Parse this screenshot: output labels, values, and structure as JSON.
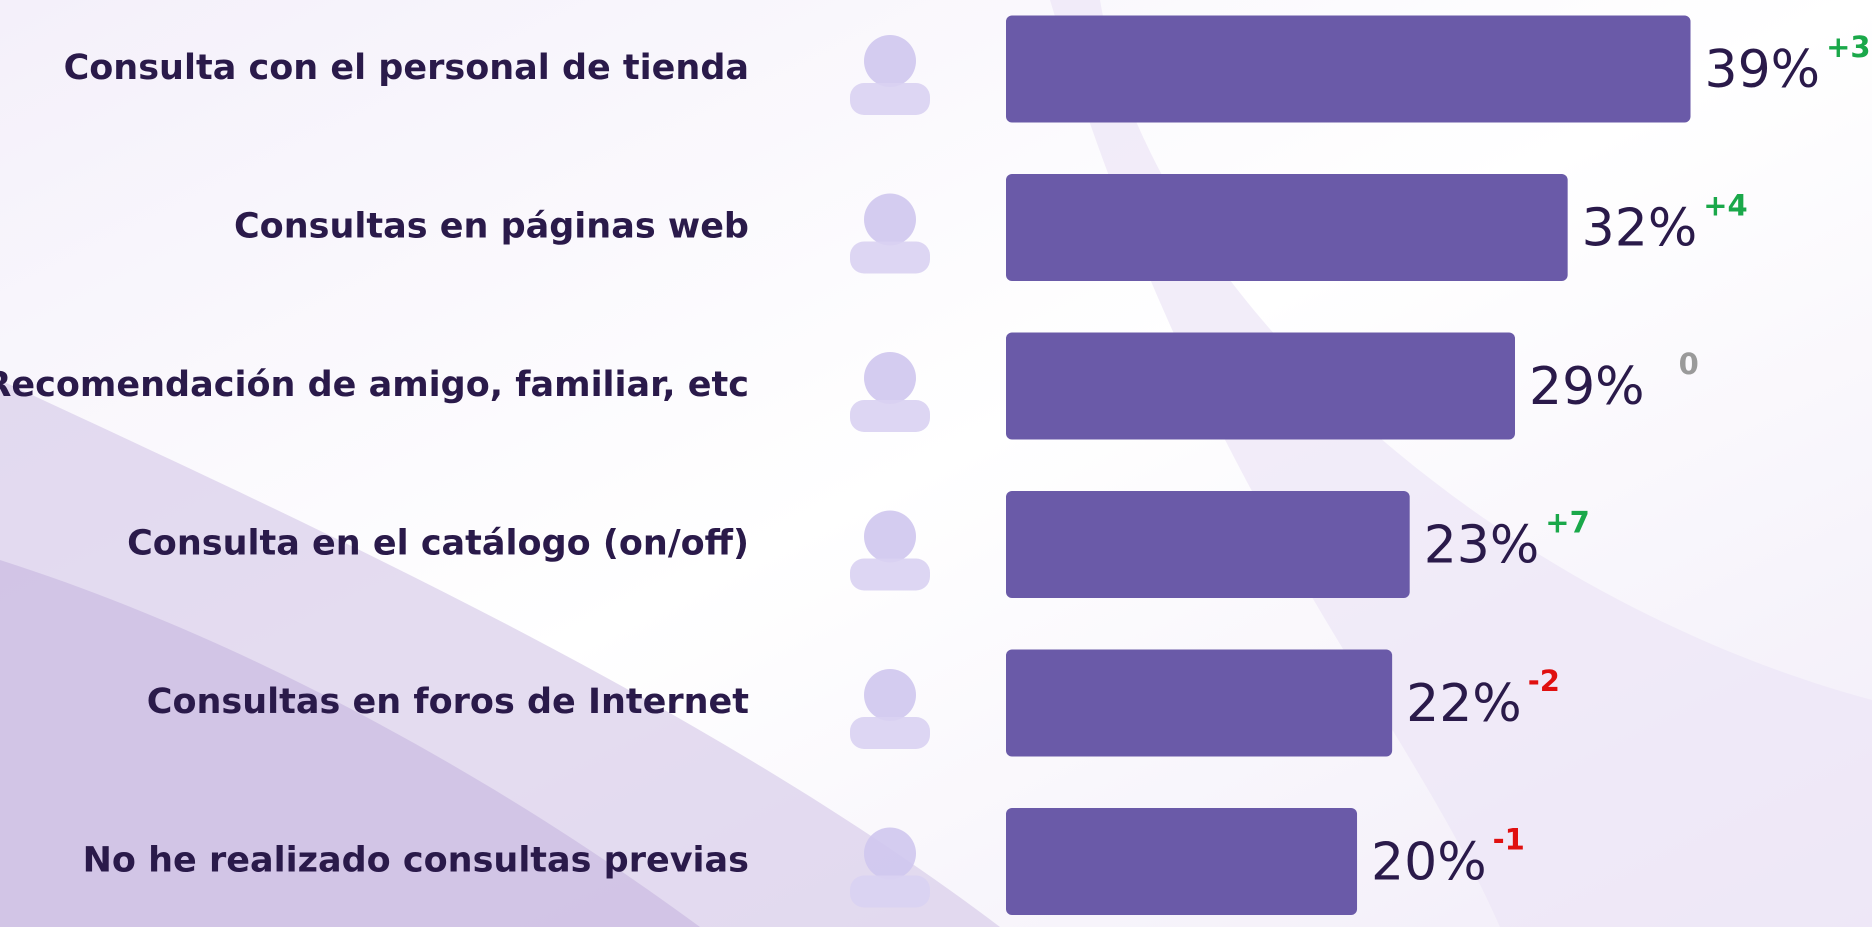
{
  "chart_data": {
    "type": "bar",
    "orientation": "horizontal",
    "categories": [
      "Consulta con el personal de tienda",
      "Consultas en páginas web",
      "Recomendación de amigo, familiar, etc",
      "Consulta en el catálogo (on/off)",
      "Consultas en foros de Internet",
      "No he realizado consultas previas"
    ],
    "values": [
      39,
      32,
      29,
      23,
      22,
      20
    ],
    "value_labels": [
      "39%",
      "32%",
      "29%",
      "23%",
      "22%",
      "20%"
    ],
    "changes": [
      3,
      4,
      0,
      7,
      -2,
      -1
    ],
    "change_labels": [
      "+3",
      "+4",
      "0",
      "+7",
      "-2",
      "-1"
    ],
    "color": "#6a5aa8",
    "change_colors": {
      "up": "#1aa84a",
      "down": "#e01010",
      "flat": "#9a9a9a"
    }
  }
}
